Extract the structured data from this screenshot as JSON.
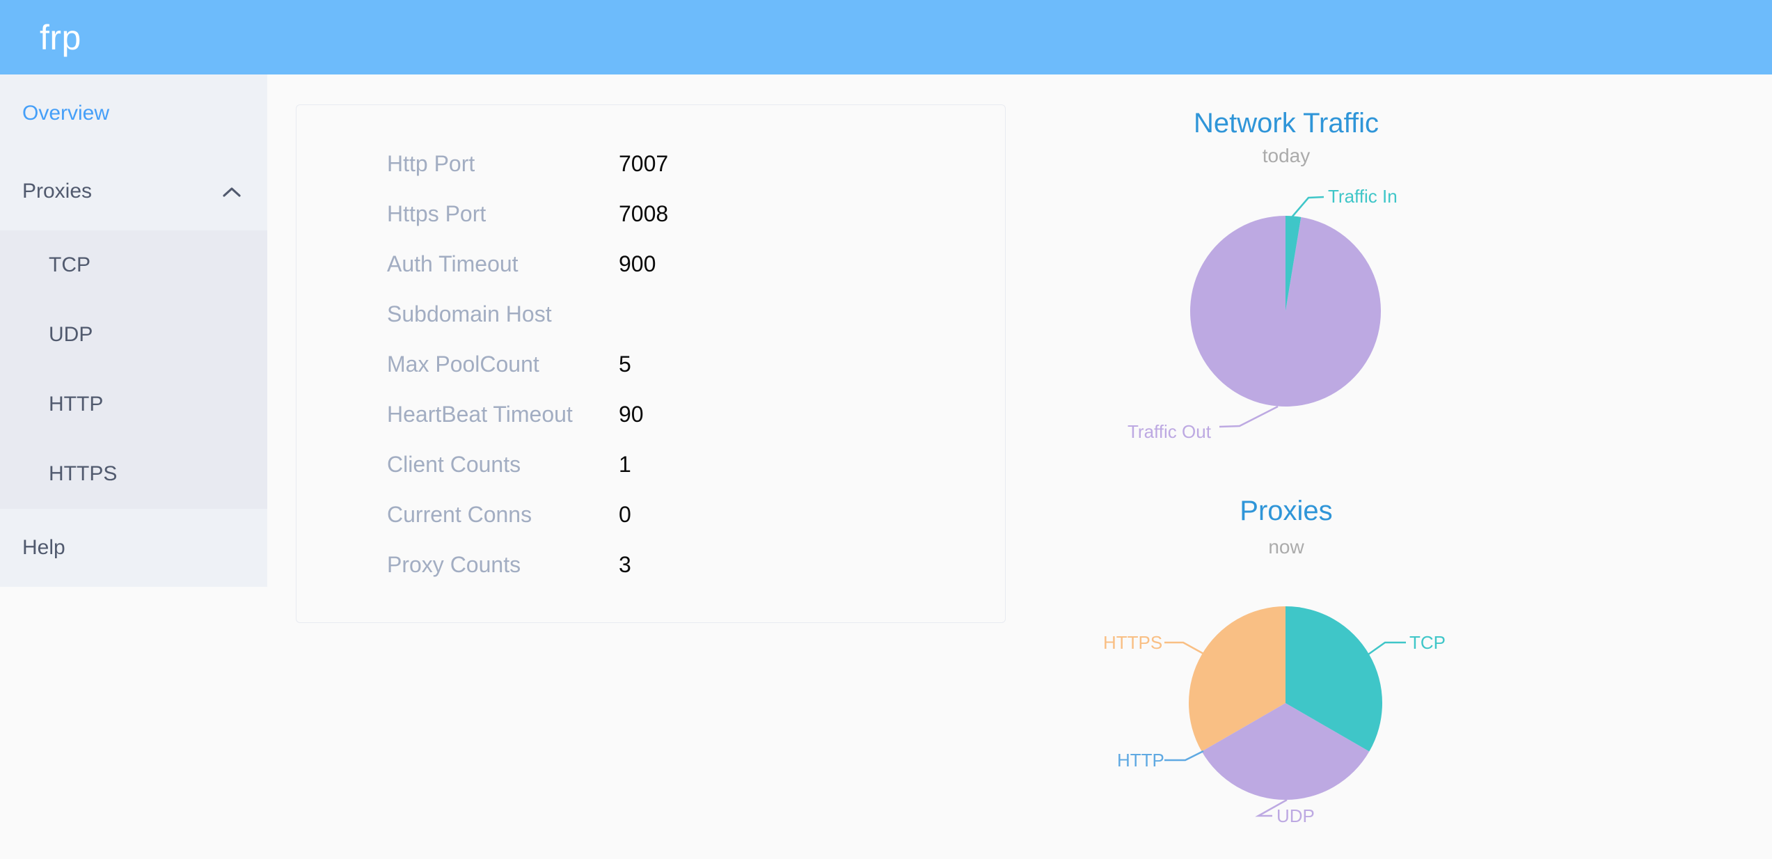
{
  "header": {
    "logo_text": "frp"
  },
  "sidebar": {
    "overview_label": "Overview",
    "proxies_label": "Proxies",
    "proxies_children": [
      "TCP",
      "UDP",
      "HTTP",
      "HTTPS"
    ],
    "help_label": "Help"
  },
  "server_info_card": {
    "rows": [
      {
        "label": "Http Port",
        "value": "7007"
      },
      {
        "label": "Https Port",
        "value": "7008"
      },
      {
        "label": "Auth Timeout",
        "value": "900"
      },
      {
        "label": "Subdomain Host",
        "value": ""
      },
      {
        "label": "Max PoolCount",
        "value": "5"
      },
      {
        "label": "HeartBeat Timeout",
        "value": "90"
      },
      {
        "label": "Client Counts",
        "value": "1"
      },
      {
        "label": "Current Conns",
        "value": "0"
      },
      {
        "label": "Proxy Counts",
        "value": "3"
      }
    ]
  },
  "chart_data": [
    {
      "type": "pie",
      "title": "Network Traffic",
      "subtitle": "today",
      "legend_position": "callout-labels",
      "values_are_percent_estimates": true,
      "series": [
        {
          "name": "Traffic In",
          "value": 2.6,
          "color": "#3fc6c8"
        },
        {
          "name": "Traffic Out",
          "value": 97.4,
          "color": "#bda9e2"
        }
      ]
    },
    {
      "type": "pie",
      "title": "Proxies",
      "subtitle": "now",
      "legend_position": "callout-labels",
      "series": [
        {
          "name": "TCP",
          "value": 1,
          "color": "#3fc6c8"
        },
        {
          "name": "UDP",
          "value": 1,
          "color": "#bda9e2"
        },
        {
          "name": "HTTP",
          "value": 0,
          "color": "#5fa9e2"
        },
        {
          "name": "HTTPS",
          "value": 1,
          "color": "#f9bf84"
        }
      ]
    }
  ],
  "colors": {
    "header_bg": "#6dbbfb",
    "sidebar_bg": "#eef1f6",
    "submenu_bg": "#e8eaf1",
    "menu_text": "#515a6e",
    "active_menu_text": "#459ff8",
    "chart_title": "#2f95d8",
    "chart_subtitle": "#ababab",
    "card_label": "#a2adc2",
    "card_value": "#0a0a0a"
  }
}
